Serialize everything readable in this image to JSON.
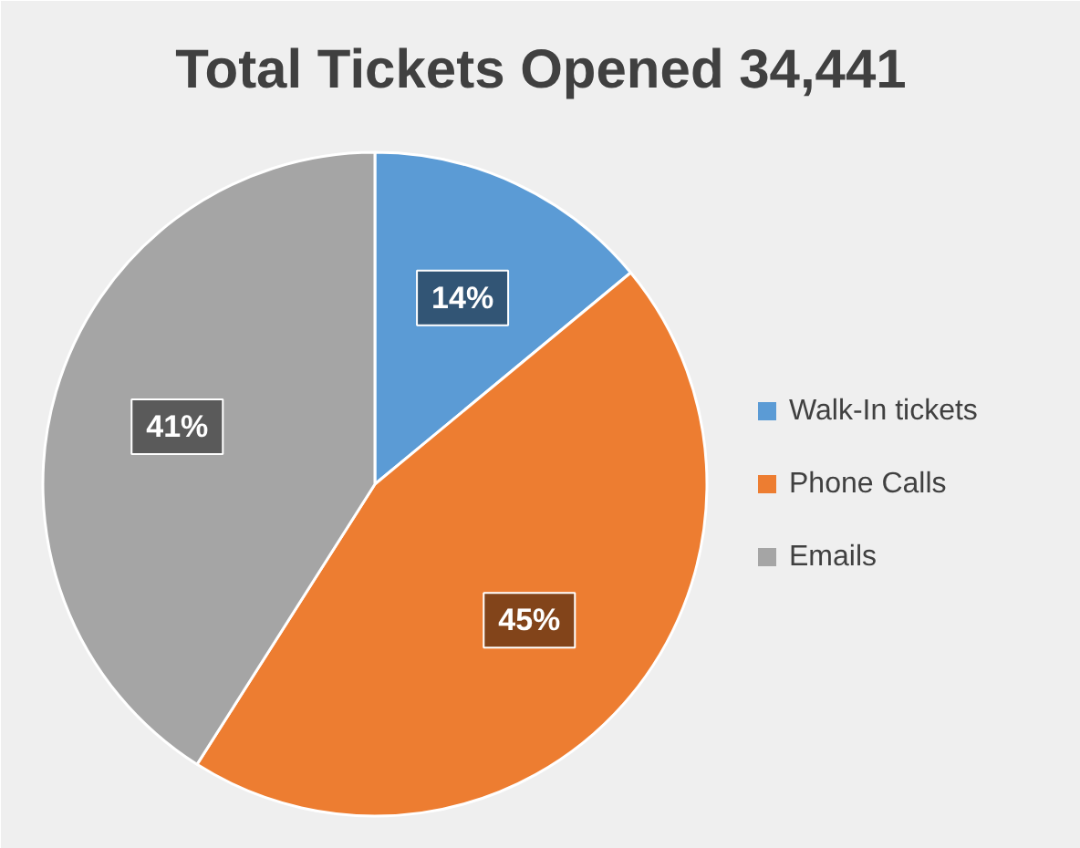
{
  "chart_data": {
    "type": "pie",
    "title": "Total Tickets Opened 34,441",
    "categories": [
      "Walk-In tickets",
      "Phone Calls",
      "Emails"
    ],
    "values": [
      14,
      45,
      41
    ],
    "colors": [
      "#5b9bd5",
      "#ed7d31",
      "#a5a5a5"
    ],
    "value_labels": [
      "14%",
      "45%",
      "41%"
    ],
    "legend": "right"
  }
}
